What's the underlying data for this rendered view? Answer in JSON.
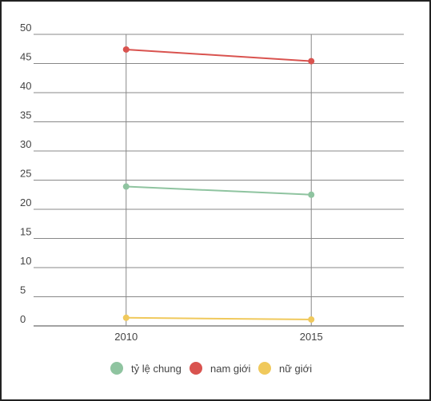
{
  "chart_data": {
    "type": "line",
    "categories": [
      "2010",
      "2015"
    ],
    "series": [
      {
        "name": "tỷ lệ chung",
        "color": "#8fc4a0",
        "values": [
          23.9,
          22.5
        ]
      },
      {
        "name": "nam giới",
        "color": "#d9534f",
        "values": [
          47.4,
          45.4
        ]
      },
      {
        "name": "nữ giới",
        "color": "#f0c95c",
        "values": [
          1.4,
          1.1
        ]
      }
    ],
    "ylim": [
      0,
      50
    ],
    "yticks": [
      0,
      5,
      10,
      15,
      20,
      25,
      30,
      35,
      40,
      45,
      50
    ],
    "grid": true
  }
}
